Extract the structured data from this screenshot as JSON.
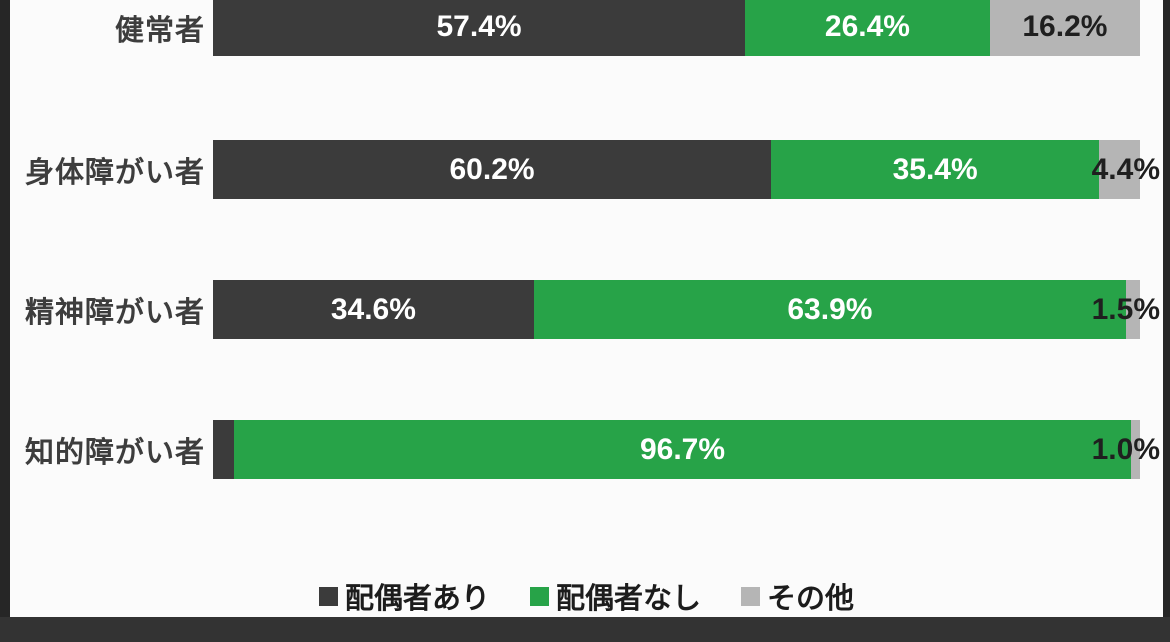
{
  "chart_data": {
    "type": "bar",
    "stacked": true,
    "orientation": "horizontal",
    "value_format": "percent",
    "categories": [
      "健常者",
      "身体障がい者",
      "精神障がい者",
      "知的障がい者"
    ],
    "series": [
      {
        "name": "配偶者あり",
        "color": "#3b3b3b",
        "label_color": "#ffffff",
        "values": [
          57.4,
          60.2,
          34.6,
          2.3
        ]
      },
      {
        "name": "配偶者なし",
        "color": "#27a348",
        "label_color": "#ffffff",
        "values": [
          26.4,
          35.4,
          63.9,
          96.7
        ]
      },
      {
        "name": "その他",
        "color": "#b5b5b5",
        "label_color": "#1f1f1f",
        "values": [
          16.2,
          4.4,
          1.5,
          1.0
        ]
      }
    ],
    "xlim": [
      0,
      100
    ],
    "grid": false,
    "legend_position": "bottom",
    "axis_labels_visible": false
  },
  "frame": {
    "background": "#fbfbfb",
    "letterbox_color": "#2e2e2e",
    "small_value_text_color": "#1f1f1f"
  }
}
